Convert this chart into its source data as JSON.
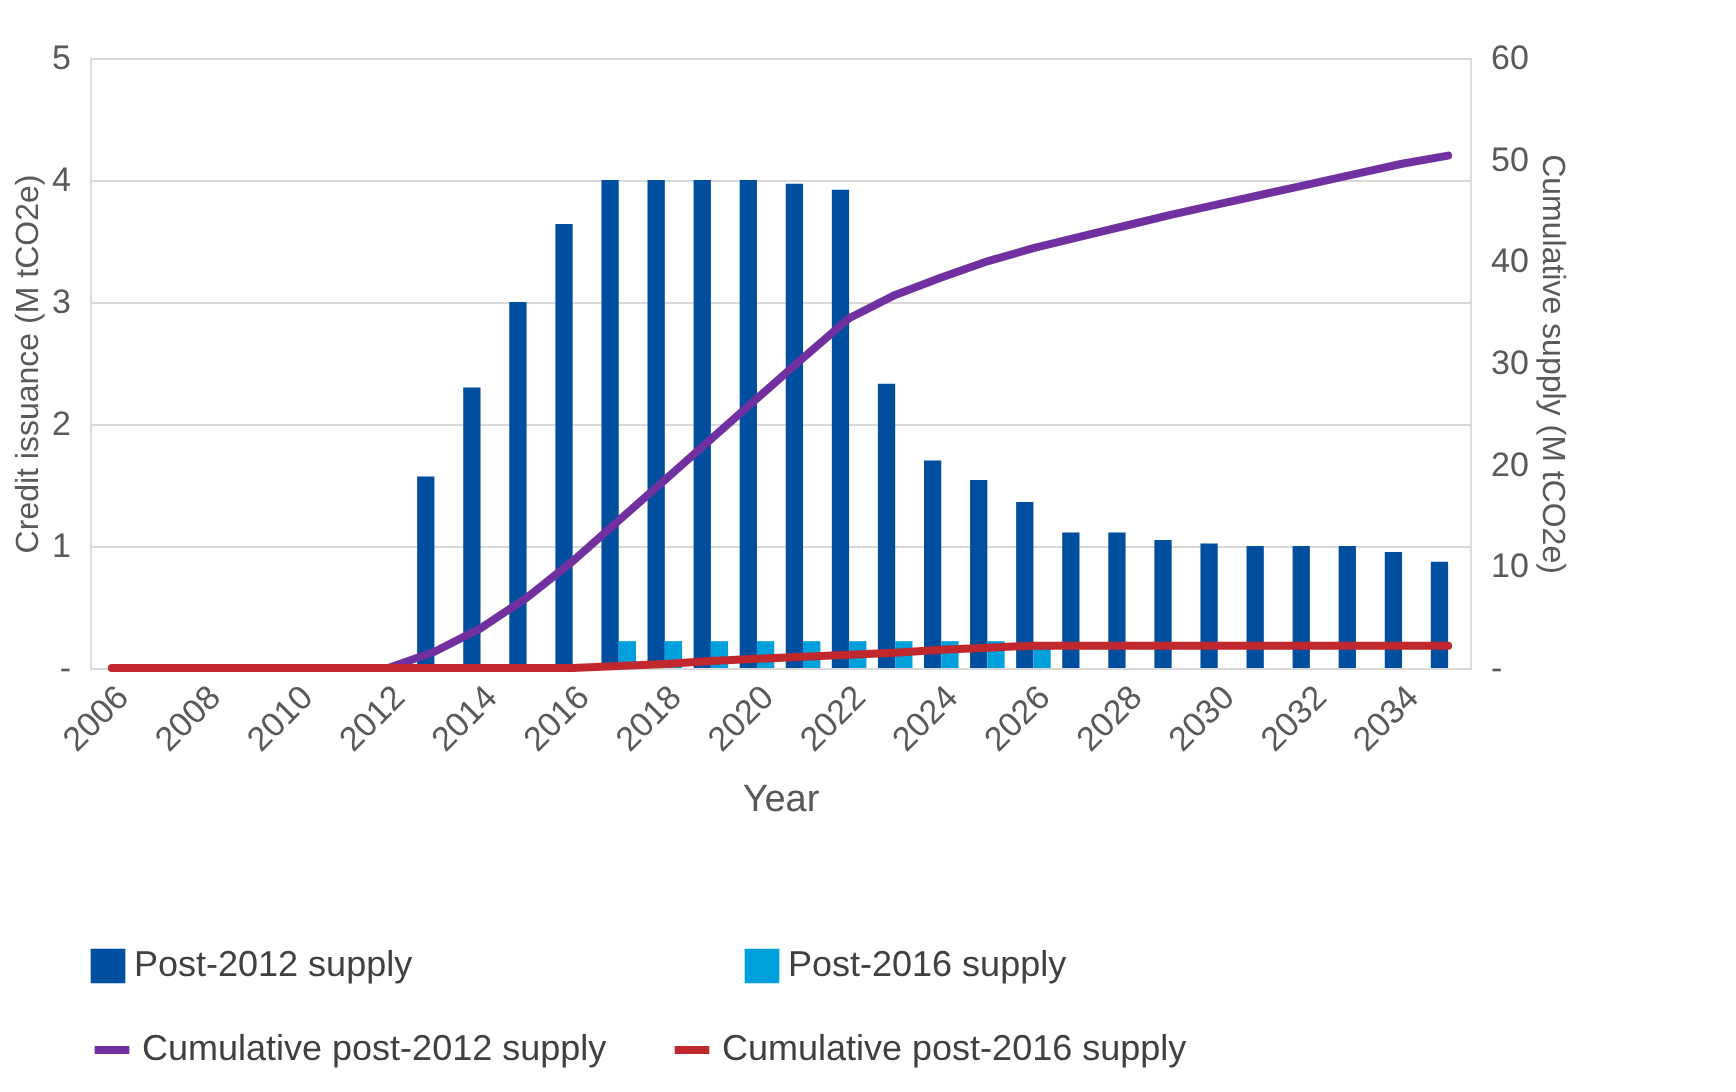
{
  "chart_data": {
    "type": "bar",
    "xlabel": "Year",
    "ylabel": "Credit issuance (M tCO2e)",
    "y2label": "Cumulative supply (M tCO2e)",
    "categories": [
      "2006",
      null,
      "2008",
      null,
      "2010",
      null,
      "2012",
      null,
      "2014",
      null,
      "2016",
      null,
      "2018",
      null,
      "2020",
      null,
      "2022",
      null,
      "2024",
      null,
      "2026",
      null,
      "2028",
      null,
      "2030",
      null,
      "2032",
      null,
      "2034",
      null
    ],
    "series": [
      {
        "name": "Post-2012 supply",
        "color": "#004f9f",
        "values": [
          0,
          0,
          0,
          0,
          0,
          0,
          0,
          1.57,
          2.3,
          3.0,
          3.64,
          4.0,
          4.0,
          4.0,
          4.0,
          3.97,
          3.92,
          2.33,
          1.7,
          1.54,
          1.36,
          1.11,
          1.11,
          1.05,
          1.02,
          1.0,
          1.0,
          1.0,
          0.95,
          0.87
        ]
      },
      {
        "name": "Post-2016 supply",
        "color": "#00a0dc",
        "values": [
          0,
          0,
          0,
          0,
          0,
          0,
          0,
          0,
          0,
          0,
          0,
          0.22,
          0.22,
          0.22,
          0.22,
          0.22,
          0.22,
          0.22,
          0.22,
          0.22,
          0.2,
          0,
          0,
          0,
          0,
          0,
          0,
          0,
          0,
          0
        ]
      },
      {
        "name": "Cumulative post-2012 supply",
        "type": "line",
        "axis": "y2",
        "color": "#7030a0",
        "values": [
          null,
          null,
          null,
          null,
          null,
          null,
          0,
          1.6,
          3.9,
          6.9,
          10.5,
          14.5,
          18.5,
          22.5,
          26.5,
          30.5,
          34.4,
          36.7,
          38.4,
          40.0,
          41.3,
          42.4,
          43.5,
          44.6,
          45.6,
          46.6,
          47.6,
          48.6,
          49.6,
          50.4
        ]
      },
      {
        "name": "Cumulative post-2016 supply",
        "type": "line",
        "axis": "y2",
        "color": "#c0282e",
        "values": [
          0,
          0,
          0,
          0,
          0,
          0,
          0,
          0,
          0,
          0,
          0,
          0.2,
          0.4,
          0.7,
          0.9,
          1.1,
          1.3,
          1.5,
          1.8,
          2.0,
          2.2,
          2.2,
          2.2,
          2.2,
          2.2,
          2.2,
          2.2,
          2.2,
          2.2,
          2.2
        ]
      }
    ],
    "ylim": [
      0,
      5
    ],
    "yticks": [
      {
        "value": 0,
        "label": "-"
      },
      1,
      2,
      3,
      4,
      5
    ],
    "y2lim": [
      0,
      60
    ],
    "y2ticks": [
      {
        "value": 0,
        "label": "-"
      },
      10,
      20,
      30,
      40,
      50,
      60
    ],
    "grid": "y",
    "legend": "bottom",
    "line_style": "solid",
    "marker": "none"
  }
}
